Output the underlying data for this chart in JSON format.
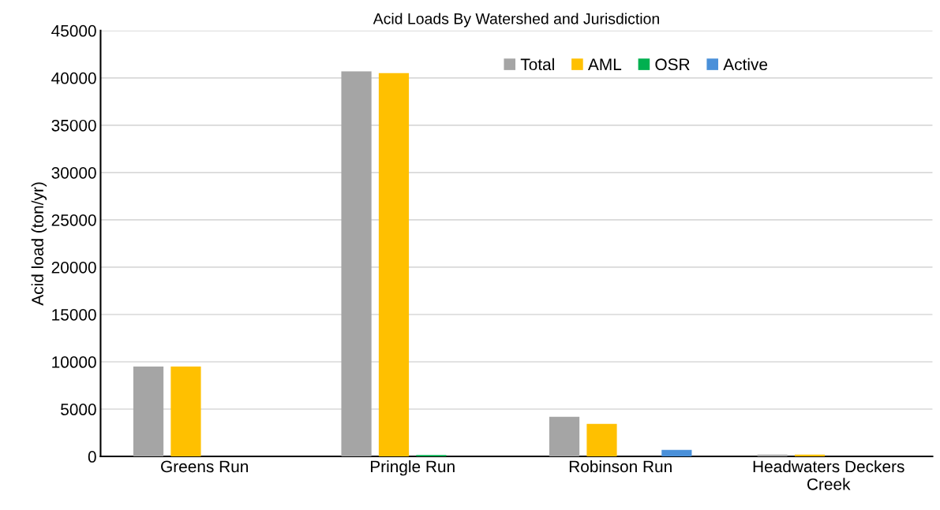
{
  "chart_data": {
    "type": "bar",
    "title": "Acid Loads By Watershed and Jurisdiction",
    "ylabel": "Acid load (ton/yr)",
    "categories": [
      "Greens Run",
      "Pringle Run",
      "Robinson Run",
      "Headwaters Deckers Creek"
    ],
    "series": [
      {
        "name": "Total",
        "color": "#a5a5a5",
        "values": [
          9500,
          40700,
          4200,
          200
        ]
      },
      {
        "name": "AML",
        "color": "#ffc000",
        "values": [
          9500,
          40500,
          3450,
          200
        ]
      },
      {
        "name": "OSR",
        "color": "#00b050",
        "values": [
          0,
          150,
          0,
          0
        ]
      },
      {
        "name": "Active",
        "color": "#4a90d9",
        "values": [
          0,
          0,
          700,
          0
        ]
      }
    ],
    "ylim": [
      0,
      45000
    ],
    "yticks": [
      0,
      5000,
      10000,
      15000,
      20000,
      25000,
      30000,
      35000,
      40000,
      45000
    ],
    "grid": "y",
    "legend": "top right"
  }
}
